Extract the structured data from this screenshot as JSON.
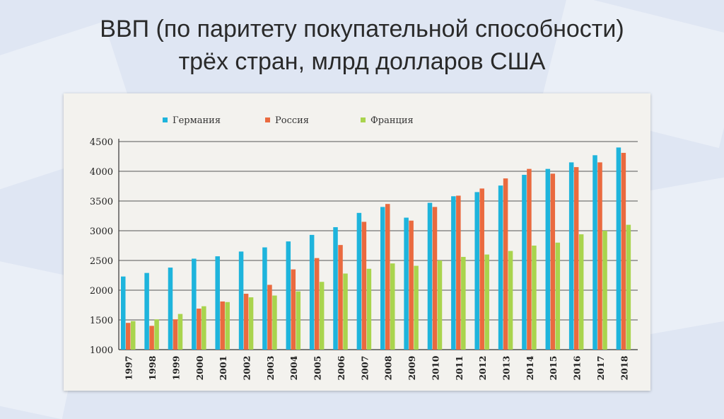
{
  "slide": {
    "title_line1": "ВВП (по паритету покупательной способности)",
    "title_line2": "трёх стран, млрд долларов США"
  },
  "colors": {
    "germany": "#1eb4dc",
    "russia": "#ea6a3f",
    "france": "#a9d44d"
  },
  "chart_data": {
    "type": "bar",
    "title": "ВВП (по паритету покупательной способности) трёх стран, млрд долларов США",
    "categories": [
      "1997",
      "1998",
      "1999",
      "2000",
      "2001",
      "2002",
      "2003",
      "2004",
      "2005",
      "2006",
      "2007",
      "2008",
      "2009",
      "2010",
      "2011",
      "2012",
      "2013",
      "2014",
      "2015",
      "2016",
      "2017",
      "2018"
    ],
    "series": [
      {
        "name": "Германия",
        "color": "#1eb4dc",
        "values": [
          2230,
          2290,
          2380,
          2530,
          2570,
          2650,
          2720,
          2820,
          2930,
          3060,
          3300,
          3400,
          3220,
          3470,
          3580,
          3650,
          3760,
          3940,
          4040,
          4150,
          4270,
          4400
        ]
      },
      {
        "name": "Россия",
        "color": "#ea6a3f",
        "values": [
          1450,
          1400,
          1510,
          1690,
          1810,
          1940,
          2090,
          2350,
          2540,
          2760,
          3150,
          3450,
          3170,
          3400,
          3590,
          3710,
          3880,
          4040,
          3960,
          4070,
          4150,
          4310
        ]
      },
      {
        "name": "Франция",
        "color": "#a9d44d",
        "values": [
          1480,
          1510,
          1600,
          1730,
          1800,
          1880,
          1910,
          1980,
          2140,
          2280,
          2360,
          2450,
          2410,
          2500,
          2560,
          2600,
          2660,
          2750,
          2800,
          2940,
          3000,
          3100
        ]
      }
    ],
    "ylim": [
      1000,
      4500
    ],
    "yticks": [
      "1000",
      "1500",
      "2000",
      "2500",
      "3000",
      "3500",
      "4000",
      "4500"
    ],
    "legend_position": "top-left",
    "grid": "horizontal"
  }
}
